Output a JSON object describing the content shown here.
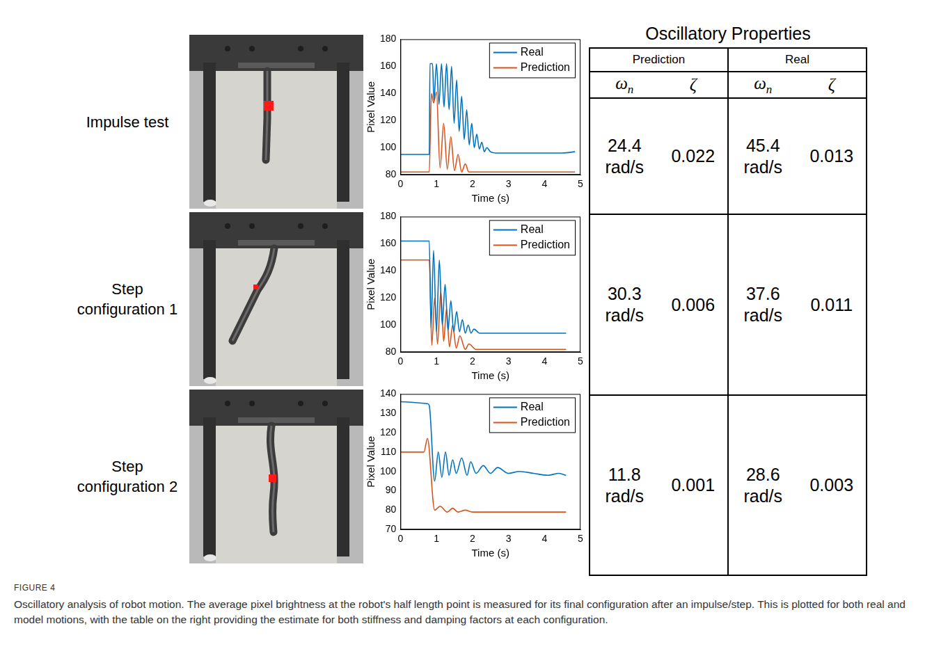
{
  "row_labels": [
    "Impulse test",
    "Step configuration 1",
    "Step configuration 2"
  ],
  "chart_data": [
    {
      "type": "line",
      "xlabel": "Time (s)",
      "ylabel": "Pixel Value",
      "xlim": [
        0,
        5
      ],
      "xticks": [
        0,
        1,
        2,
        3,
        4,
        5
      ],
      "ylim": [
        80,
        180
      ],
      "yticks": [
        80,
        100,
        120,
        140,
        160,
        180
      ],
      "grid": false,
      "legend": "upper right",
      "series": [
        {
          "name": "Real",
          "color": "#0072bd",
          "x": [
            0,
            0.8,
            0.82,
            0.89,
            0.93,
            1.0,
            1.07,
            1.14,
            1.21,
            1.28,
            1.35,
            1.42,
            1.49,
            1.56,
            1.63,
            1.7,
            1.77,
            1.84,
            1.91,
            1.98,
            2.05,
            2.12,
            2.19,
            2.26,
            2.33,
            2.4,
            2.5,
            2.7,
            3.0,
            3.5,
            4.0,
            4.5,
            4.85
          ],
          "values": [
            95,
            95,
            162,
            162,
            135,
            162,
            132,
            162,
            130,
            162,
            128,
            160,
            118,
            150,
            112,
            138,
            106,
            128,
            102,
            118,
            100,
            110,
            99,
            104,
            97,
            100,
            97,
            96,
            96,
            96,
            96,
            96,
            97
          ]
        },
        {
          "name": "Prediction",
          "color": "#d95319",
          "x": [
            0,
            0.8,
            0.86,
            0.92,
            1.0,
            1.1,
            1.2,
            1.3,
            1.4,
            1.5,
            1.6,
            1.7,
            1.8,
            1.9,
            2.5,
            3.5,
            4.85
          ],
          "values": [
            82,
            82,
            140,
            133,
            141,
            85,
            118,
            84,
            108,
            83,
            95,
            82,
            88,
            82,
            82,
            82,
            82
          ]
        }
      ]
    },
    {
      "type": "line",
      "xlabel": "Time (s)",
      "ylabel": "Pixel Value",
      "xlim": [
        0,
        5
      ],
      "xticks": [
        0,
        1,
        2,
        3,
        4,
        5
      ],
      "ylim": [
        80,
        180
      ],
      "yticks": [
        80,
        100,
        120,
        140,
        160,
        180
      ],
      "grid": false,
      "legend": "upper right",
      "series": [
        {
          "name": "Real",
          "color": "#0072bd",
          "x": [
            0,
            0.8,
            0.85,
            0.92,
            1.0,
            1.08,
            1.16,
            1.24,
            1.32,
            1.4,
            1.48,
            1.56,
            1.64,
            1.72,
            1.8,
            1.88,
            1.96,
            2.04,
            2.2,
            3.0,
            4.0,
            4.6
          ],
          "values": [
            162,
            162,
            98,
            155,
            95,
            148,
            100,
            130,
            96,
            118,
            95,
            110,
            95,
            104,
            94,
            100,
            94,
            97,
            94,
            94,
            94,
            94
          ]
        },
        {
          "name": "Prediction",
          "color": "#d95319",
          "x": [
            0,
            0.8,
            0.87,
            0.95,
            1.03,
            1.12,
            1.2,
            1.28,
            1.36,
            1.45,
            1.55,
            1.65,
            1.8,
            1.9,
            2.1,
            3.0,
            4.6
          ],
          "values": [
            148,
            148,
            85,
            120,
            86,
            125,
            88,
            112,
            84,
            100,
            83,
            92,
            82,
            86,
            82,
            82,
            82
          ]
        }
      ]
    },
    {
      "type": "line",
      "xlabel": "Time (s)",
      "ylabel": "Pixel Value",
      "xlim": [
        0,
        5
      ],
      "xticks": [
        0,
        1,
        2,
        3,
        4,
        5
      ],
      "ylim": [
        70,
        140
      ],
      "yticks": [
        70,
        80,
        90,
        100,
        110,
        120,
        130,
        140
      ],
      "grid": false,
      "legend": "upper right",
      "series": [
        {
          "name": "Real",
          "color": "#0072bd",
          "x": [
            0,
            0.75,
            0.8,
            0.95,
            1.05,
            1.15,
            1.25,
            1.35,
            1.45,
            1.55,
            1.7,
            1.85,
            1.95,
            2.1,
            2.3,
            2.5,
            2.7,
            3.0,
            3.3,
            3.7,
            4.1,
            4.4,
            4.6
          ],
          "values": [
            136,
            135,
            134,
            95,
            110,
            97,
            110,
            98,
            106,
            99,
            107,
            98,
            105,
            99,
            103,
            99,
            102,
            99,
            100,
            99,
            98,
            99,
            98
          ]
        },
        {
          "name": "Prediction",
          "color": "#d95319",
          "x": [
            0,
            0.65,
            0.75,
            0.95,
            1.1,
            1.3,
            1.45,
            1.6,
            1.8,
            2.0,
            3.0,
            4.6
          ],
          "values": [
            110,
            110,
            117,
            80,
            82,
            79,
            81,
            79,
            80,
            79,
            79,
            79
          ]
        }
      ]
    }
  ],
  "table": {
    "title": "Oscillatory Properties",
    "groups": [
      "Prediction",
      "Real"
    ],
    "columns": [
      {
        "text": "ω",
        "sub": "n"
      },
      {
        "text": "ζ"
      },
      {
        "text": "ω",
        "sub": "n"
      },
      {
        "text": "ζ"
      }
    ],
    "rows": [
      [
        "24.4 rad/s",
        "0.022",
        "45.4 rad/s",
        "0.013"
      ],
      [
        "30.3 rad/s",
        "0.006",
        "37.6 rad/s",
        "0.011"
      ],
      [
        "11.8 rad/s",
        "0.001",
        "28.6 rad/s",
        "0.003"
      ]
    ]
  },
  "caption": {
    "label": "FIGURE 4",
    "text": "Oscillatory analysis of robot motion. The average pixel brightness at the robot's half length point is measured for its final configuration after an impulse/step. This is plotted for both real and model motions, with the table on the right providing the estimate for both stiffness and damping factors at each configuration."
  }
}
